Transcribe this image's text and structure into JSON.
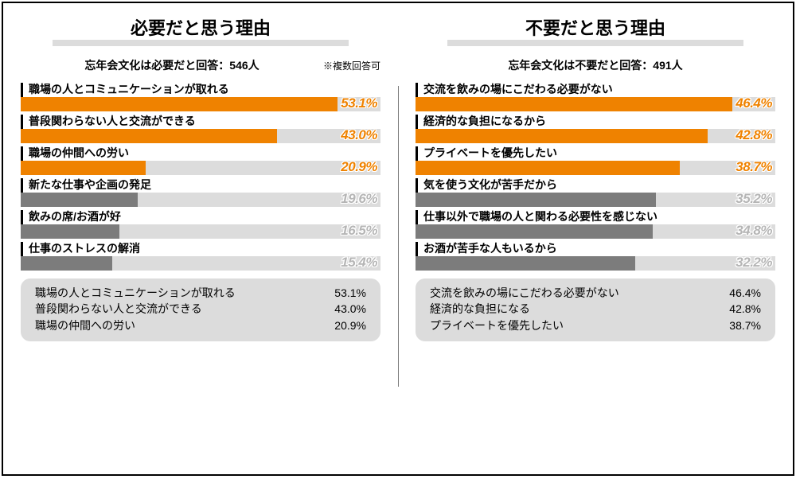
{
  "colors": {
    "orange": "#ef8200",
    "gray_fill": "#7c7c7c",
    "track": "#dcdcdc",
    "pct_orange_text": "#ef8200",
    "pct_gray_text": "#b5b5b5"
  },
  "chart": {
    "track_width_pct": 100,
    "bar_max_pct": 100
  },
  "center_note": "※複数回答可",
  "left": {
    "title": "必要だと思う理由",
    "subtitle": "忘年会文化は必要だと回答：546人",
    "items": [
      {
        "label": "職場の人とコミュニケーションが取れる",
        "value": 53.1,
        "highlight": true
      },
      {
        "label": "普段関わらない人と交流ができる",
        "value": 43.0,
        "highlight": true
      },
      {
        "label": "職場の仲間への労い",
        "value": 20.9,
        "highlight": true
      },
      {
        "label": "新たな仕事や企画の発足",
        "value": 19.6,
        "highlight": false
      },
      {
        "label": "飲みの席/お酒が好",
        "value": 16.5,
        "highlight": false
      },
      {
        "label": "仕事のストレスの解消",
        "value": 15.4,
        "highlight": false
      }
    ],
    "summary": [
      {
        "label": "職場の人とコミュニケーションが取れる",
        "value": "53.1%"
      },
      {
        "label": "普段関わらない人と交流ができる",
        "value": "43.0%"
      },
      {
        "label": "職場の仲間への労い",
        "value": "20.9%"
      }
    ]
  },
  "right": {
    "title": "不要だと思う理由",
    "subtitle": "忘年会文化は不要だと回答：491人",
    "items": [
      {
        "label": "交流を飲みの場にこだわる必要がない",
        "value": 46.4,
        "highlight": true
      },
      {
        "label": "経済的な負担になるから",
        "value": 42.8,
        "highlight": true
      },
      {
        "label": "プライベートを優先したい",
        "value": 38.7,
        "highlight": true
      },
      {
        "label": "気を使う文化が苦手だから",
        "value": 35.2,
        "highlight": false
      },
      {
        "label": "仕事以外で職場の人と関わる必要性を感じない",
        "value": 34.8,
        "highlight": false
      },
      {
        "label": "お酒が苦手な人もいるから",
        "value": 32.2,
        "highlight": false
      }
    ],
    "summary": [
      {
        "label": "交流を飲みの場にこだわる必要がない",
        "value": "46.4%"
      },
      {
        "label": "経済的な負担になる",
        "value": "42.8%"
      },
      {
        "label": "プライベートを優先したい",
        "value": "38.7%"
      }
    ]
  }
}
